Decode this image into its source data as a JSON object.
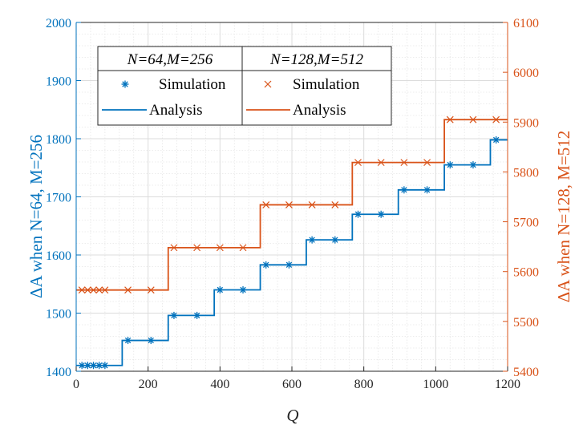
{
  "chart_data": {
    "type": "line",
    "xlabel": "Q",
    "xlim": [
      0,
      1200
    ],
    "xticks": [
      0,
      200,
      400,
      600,
      800,
      1000,
      1200
    ],
    "ylabel_left": "ΔA when N=64, M=256",
    "ylim_left": [
      1400,
      2000
    ],
    "yticks_left": [
      1400,
      1500,
      1600,
      1700,
      1800,
      1900,
      2000
    ],
    "ylabel_right": "ΔA when N=128, M=512",
    "ylim_right": [
      5400,
      6100
    ],
    "yticks_right": [
      5400,
      5500,
      5600,
      5700,
      5800,
      5900,
      6000,
      6100
    ],
    "grid": true,
    "legend": {
      "placement": "top-left",
      "headers": [
        "N=64,M=256",
        "N=128,M=512"
      ],
      "simulation_label": "Simulation",
      "analysis_label": "Analysis"
    },
    "series": [
      {
        "name": "N=64,M=256 Simulation",
        "axis": "left",
        "marker": "*",
        "color": "#0072BD",
        "x": [
          16,
          32,
          48,
          64,
          80,
          144,
          208,
          272,
          336,
          400,
          464,
          528,
          592,
          656,
          720,
          784,
          848,
          912,
          976,
          1040,
          1104,
          1168
        ],
        "y": [
          1410,
          1410,
          1410,
          1410,
          1410,
          1453,
          1453,
          1496,
          1496,
          1540,
          1540,
          1583,
          1583,
          1626,
          1626,
          1670,
          1670,
          1712,
          1712,
          1755,
          1755,
          1798
        ]
      },
      {
        "name": "N=64,M=256 Analysis",
        "axis": "left",
        "style": "step",
        "color": "#0072BD",
        "x": [
          0,
          128,
          128,
          256,
          256,
          384,
          384,
          512,
          512,
          640,
          640,
          768,
          768,
          896,
          896,
          1024,
          1024,
          1152,
          1152,
          1200
        ],
        "y": [
          1410,
          1410,
          1453,
          1453,
          1496,
          1496,
          1540,
          1540,
          1583,
          1583,
          1626,
          1626,
          1670,
          1670,
          1712,
          1712,
          1755,
          1755,
          1798,
          1798
        ]
      },
      {
        "name": "N=128,M=512 Simulation",
        "axis": "right",
        "marker": "x",
        "color": "#D95319",
        "x": [
          16,
          32,
          48,
          64,
          80,
          144,
          208,
          272,
          336,
          400,
          464,
          528,
          592,
          656,
          720,
          784,
          848,
          912,
          976,
          1040,
          1104,
          1168
        ],
        "y": [
          5563,
          5563,
          5563,
          5563,
          5563,
          5563,
          5563,
          5648,
          5648,
          5648,
          5648,
          5734,
          5734,
          5734,
          5734,
          5819,
          5819,
          5819,
          5819,
          5905,
          5905,
          5905
        ]
      },
      {
        "name": "N=128,M=512 Analysis",
        "axis": "right",
        "style": "step",
        "color": "#D95319",
        "x": [
          0,
          256,
          256,
          512,
          512,
          768,
          768,
          1024,
          1024,
          1200
        ],
        "y": [
          5563,
          5563,
          5648,
          5648,
          5734,
          5734,
          5819,
          5819,
          5905,
          5905
        ]
      }
    ]
  }
}
